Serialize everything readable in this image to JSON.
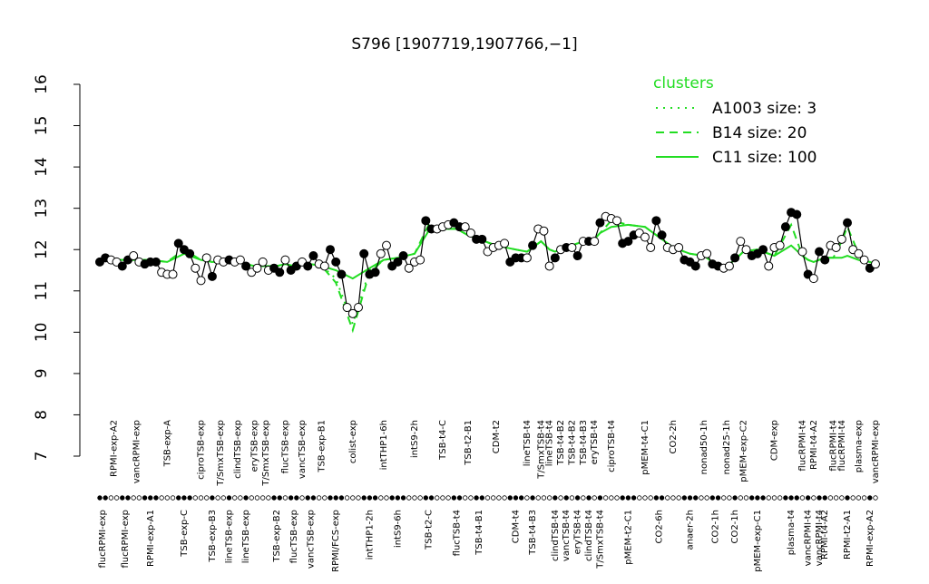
{
  "chart_data": {
    "type": "profile",
    "title": "S796 [1907719,1907766,−1]",
    "ylim": [
      7,
      16
    ],
    "yticks": [
      7,
      8,
      9,
      10,
      11,
      12,
      13,
      14,
      15,
      16
    ],
    "legend_title": "clusters",
    "legend_position": "top-right",
    "groups": [
      {
        "label": "flucRPMI-exp",
        "side": "bottom",
        "filled": true,
        "values": [
          11.7,
          11.8
        ]
      },
      {
        "label": "RPMI-exp-A2",
        "side": "top",
        "filled": false,
        "values": [
          11.75,
          11.7
        ]
      },
      {
        "label": "flucRPMI-exp",
        "side": "bottom",
        "filled": true,
        "values": [
          11.6,
          11.75
        ]
      },
      {
        "label": "vancRPMI-exp",
        "side": "top",
        "filled": false,
        "values": [
          11.85,
          11.7
        ]
      },
      {
        "label": "RPMI-exp-A1",
        "side": "bottom",
        "filled": true,
        "values": [
          11.65,
          11.7,
          11.7
        ]
      },
      {
        "label": "TSB-exp-A",
        "side": "top",
        "filled": false,
        "values": [
          11.45,
          11.4,
          11.4
        ]
      },
      {
        "label": "TSB-exp-C",
        "side": "bottom",
        "filled": true,
        "values": [
          12.15,
          12.0,
          11.9
        ]
      },
      {
        "label": "ciproTSB-exp",
        "side": "top",
        "filled": false,
        "values": [
          11.55,
          11.25,
          11.8
        ]
      },
      {
        "label": "TSB-exp-B3",
        "side": "bottom",
        "filled": true,
        "values": [
          11.35
        ]
      },
      {
        "label": "T/SmxTSB-exp",
        "side": "top",
        "filled": false,
        "values": [
          11.75,
          11.7
        ]
      },
      {
        "label": "lineTSB-exp",
        "side": "bottom",
        "filled": true,
        "values": [
          11.75
        ]
      },
      {
        "label": "clindTSB-exp",
        "side": "top",
        "filled": false,
        "values": [
          11.7,
          11.75
        ]
      },
      {
        "label": "lineTSB-exp",
        "side": "bottom",
        "filled": true,
        "values": [
          11.6
        ]
      },
      {
        "label": "eryTSB-exp",
        "side": "top",
        "filled": false,
        "values": [
          11.45,
          11.55
        ]
      },
      {
        "label": "T/SmxTSB-exp",
        "side": "top",
        "filled": false,
        "values": [
          11.7,
          11.5
        ]
      },
      {
        "label": "TSB-exp-B2",
        "side": "bottom",
        "filled": true,
        "values": [
          11.55,
          11.45
        ]
      },
      {
        "label": "flucTSB-exp",
        "side": "top",
        "filled": false,
        "values": [
          11.75
        ]
      },
      {
        "label": "flucTSB-exp",
        "side": "bottom",
        "filled": true,
        "values": [
          11.5,
          11.6
        ]
      },
      {
        "label": "vancTSB-exp",
        "side": "top",
        "filled": false,
        "values": [
          11.7
        ]
      },
      {
        "label": "vancTSB-exp",
        "side": "bottom",
        "filled": true,
        "values": [
          11.6,
          11.85
        ]
      },
      {
        "label": "TSB-exp-B1",
        "side": "top",
        "filled": false,
        "values": [
          11.65,
          11.6
        ]
      },
      {
        "label": "RPMI/FCS-exp",
        "side": "bottom",
        "filled": true,
        "values": [
          12.0,
          11.7,
          11.4
        ]
      },
      {
        "label": "colist-exp",
        "side": "top",
        "filled": false,
        "values": [
          10.6,
          10.45,
          10.6
        ]
      },
      {
        "label": "intTHP1-2h",
        "side": "bottom",
        "filled": true,
        "values": [
          11.9,
          11.4,
          11.45
        ]
      },
      {
        "label": "intTHP1-6h",
        "side": "top",
        "filled": false,
        "values": [
          11.9,
          12.1
        ]
      },
      {
        "label": "intS9-6h",
        "side": "bottom",
        "filled": true,
        "values": [
          11.6,
          11.7,
          11.85
        ]
      },
      {
        "label": "intS9-2h",
        "side": "top",
        "filled": false,
        "values": [
          11.55,
          11.7,
          11.75
        ]
      },
      {
        "label": "TSB-t2-C",
        "side": "bottom",
        "filled": true,
        "values": [
          12.7,
          12.5
        ]
      },
      {
        "label": "TSB-t4-C",
        "side": "top",
        "filled": false,
        "values": [
          12.5,
          12.55,
          12.6
        ]
      },
      {
        "label": "flucTSB-t4",
        "side": "bottom",
        "filled": true,
        "values": [
          12.65,
          12.55
        ]
      },
      {
        "label": "TSB-t2-B1",
        "side": "top",
        "filled": false,
        "values": [
          12.55,
          12.4
        ]
      },
      {
        "label": "TSB-t4-B1",
        "side": "bottom",
        "filled": true,
        "values": [
          12.25,
          12.25
        ]
      },
      {
        "label": "CDM-t2",
        "side": "top",
        "filled": false,
        "values": [
          11.95,
          12.05,
          12.1,
          12.15
        ]
      },
      {
        "label": "CDM-t4",
        "side": "bottom",
        "filled": true,
        "values": [
          11.7,
          11.8,
          11.8
        ]
      },
      {
        "label": "lineTSB-t4",
        "side": "top",
        "filled": false,
        "values": [
          11.8
        ]
      },
      {
        "label": "TSB-t4-B3",
        "side": "bottom",
        "filled": true,
        "values": [
          12.1
        ]
      },
      {
        "label": "T/SmxTSB-t4",
        "side": "top",
        "filled": false,
        "values": [
          12.5,
          12.45
        ]
      },
      {
        "label": "lineTSB-t4",
        "side": "top",
        "filled": false,
        "values": [
          11.6
        ]
      },
      {
        "label": "clindTSB-t4",
        "side": "bottom",
        "filled": true,
        "values": [
          11.8
        ]
      },
      {
        "label": "TSB-t4-B2",
        "side": "top",
        "filled": false,
        "values": [
          12.0
        ]
      },
      {
        "label": "vancTSB-t4",
        "side": "bottom",
        "filled": true,
        "values": [
          12.05
        ]
      },
      {
        "label": "TSB-t4-B2",
        "side": "top",
        "filled": false,
        "values": [
          12.05
        ]
      },
      {
        "label": "eryTSB-t4",
        "side": "bottom",
        "filled": true,
        "values": [
          11.85
        ]
      },
      {
        "label": "TSB-t4-B3",
        "side": "top",
        "filled": false,
        "values": [
          12.2
        ]
      },
      {
        "label": "clindTSB-t4",
        "side": "bottom",
        "filled": true,
        "values": [
          12.2
        ]
      },
      {
        "label": "eryTSB-t4",
        "side": "top",
        "filled": false,
        "values": [
          12.2
        ]
      },
      {
        "label": "T/SmxTSB-t4",
        "side": "bottom",
        "filled": true,
        "values": [
          12.65
        ]
      },
      {
        "label": "ciproTSB-t4",
        "side": "top",
        "filled": false,
        "values": [
          12.8,
          12.75,
          12.7
        ]
      },
      {
        "label": "pMEM-t2-C1",
        "side": "bottom",
        "filled": true,
        "values": [
          12.15,
          12.2,
          12.35
        ]
      },
      {
        "label": "pMEM-t4-C1",
        "side": "top",
        "filled": false,
        "values": [
          12.4,
          12.3,
          12.05
        ]
      },
      {
        "label": "CO2-6h",
        "side": "bottom",
        "filled": true,
        "values": [
          12.7,
          12.35
        ]
      },
      {
        "label": "CO2-2h",
        "side": "top",
        "filled": false,
        "values": [
          12.05,
          12.0,
          12.05
        ]
      },
      {
        "label": "anaer-2h",
        "side": "bottom",
        "filled": true,
        "values": [
          11.75,
          11.7,
          11.6
        ]
      },
      {
        "label": "nonad50-1h",
        "side": "top",
        "filled": false,
        "values": [
          11.85,
          11.9
        ]
      },
      {
        "label": "CO2-1h",
        "side": "bottom",
        "filled": true,
        "values": [
          11.65,
          11.6
        ]
      },
      {
        "label": "nonad25-1h",
        "side": "top",
        "filled": false,
        "values": [
          11.55,
          11.6
        ]
      },
      {
        "label": "CO2-1h",
        "side": "bottom",
        "filled": true,
        "values": [
          11.8
        ]
      },
      {
        "label": "pMEM-exp-C2",
        "side": "top",
        "filled": false,
        "values": [
          12.2,
          12.0
        ]
      },
      {
        "label": "pMEM-exp-C1",
        "side": "bottom",
        "filled": true,
        "values": [
          11.85,
          11.9,
          12.0
        ]
      },
      {
        "label": "CDM-exp",
        "side": "top",
        "filled": false,
        "values": [
          11.6,
          12.05,
          12.1
        ]
      },
      {
        "label": "plasma-t4",
        "side": "bottom",
        "filled": true,
        "values": [
          12.55,
          12.9,
          12.85
        ]
      },
      {
        "label": "flucRPMI-t4",
        "side": "top",
        "filled": false,
        "values": [
          11.95
        ]
      },
      {
        "label": "vancRPMI-t4",
        "side": "bottom",
        "filled": true,
        "values": [
          11.4
        ]
      },
      {
        "label": "RPMI-t4-A2",
        "side": "top",
        "filled": false,
        "values": [
          11.3
        ]
      },
      {
        "label": "vancRPMI-t4",
        "side": "bottom",
        "filled": true,
        "values": [
          11.95
        ]
      },
      {
        "label": "RPMI-t4-A2",
        "side": "bottom",
        "filled": true,
        "values": [
          11.75
        ]
      },
      {
        "label": "flucRPMI-t4",
        "side": "top",
        "filled": false,
        "values": [
          12.1,
          12.05
        ]
      },
      {
        "label": "flucRPMI-t4",
        "side": "top",
        "filled": false,
        "values": [
          12.25
        ]
      },
      {
        "label": "RPMI-t2-A1",
        "side": "bottom",
        "filled": true,
        "values": [
          12.65
        ]
      },
      {
        "label": "plasma-exp",
        "side": "top",
        "filled": false,
        "values": [
          12.0,
          11.9,
          11.75
        ]
      },
      {
        "label": "RPMI-exp-A2",
        "side": "bottom",
        "filled": true,
        "values": [
          11.55
        ]
      },
      {
        "label": "vancRPMI-exp",
        "side": "top",
        "filled": false,
        "values": [
          11.65
        ]
      }
    ],
    "series": [
      {
        "name": "A1003 size: 3",
        "color": "#22dd22",
        "style": "dotted",
        "values": [
          null,
          null,
          null,
          null,
          null,
          null,
          null,
          null,
          null,
          null,
          null,
          null,
          null,
          null,
          null,
          null,
          null,
          null,
          null,
          null,
          11.6,
          11.3,
          10.2,
          11.5,
          11.75,
          null,
          null,
          null,
          null,
          null,
          null,
          null,
          null,
          null,
          null,
          null,
          null,
          null,
          null,
          null,
          null,
          null,
          null,
          null,
          null,
          null,
          null,
          null,
          null,
          null,
          null,
          null,
          null,
          null,
          null,
          null,
          null,
          null,
          null,
          null,
          null,
          null,
          null,
          null,
          null,
          null,
          null,
          null,
          null,
          null,
          null,
          null
        ]
      },
      {
        "name": "B14 size: 20",
        "color": "#22dd22",
        "style": "dashed",
        "values": [
          11.75,
          11.75,
          11.75,
          11.75,
          11.75,
          11.7,
          12.0,
          11.75,
          11.7,
          11.7,
          11.7,
          11.7,
          11.65,
          11.6,
          11.6,
          11.6,
          11.65,
          11.6,
          11.65,
          11.65,
          11.6,
          11.2,
          10.05,
          11.45,
          11.75,
          11.8,
          11.9,
          12.6,
          12.5,
          12.5,
          12.35,
          12.25,
          12.1,
          12.0,
          11.95,
          12.05,
          12.2,
          12.0,
          11.95,
          12.0,
          12.05,
          12.1,
          12.15,
          12.2,
          12.2,
          12.25,
          12.4,
          12.7,
          12.6,
          12.55,
          12.3,
          12.05,
          11.9,
          11.85,
          11.65,
          11.6,
          11.75,
          11.95,
          12.0,
          11.85,
          12.6,
          11.85,
          11.75,
          11.7,
          11.75,
          11.8,
          11.8,
          12.2,
          12.55,
          11.9,
          11.7,
          11.65
        ]
      },
      {
        "name": "C11 size: 100",
        "color": "#22dd22",
        "style": "solid",
        "values": [
          11.75,
          11.75,
          11.75,
          11.75,
          11.75,
          11.7,
          11.9,
          11.75,
          11.7,
          11.7,
          11.7,
          11.7,
          11.65,
          11.6,
          11.6,
          11.6,
          11.65,
          11.6,
          11.65,
          11.65,
          11.6,
          11.5,
          11.3,
          11.55,
          11.75,
          11.8,
          11.9,
          12.45,
          12.5,
          12.5,
          12.35,
          12.25,
          12.1,
          12.0,
          11.95,
          12.05,
          12.2,
          12.0,
          11.95,
          12.0,
          12.05,
          12.1,
          12.15,
          12.2,
          12.2,
          12.25,
          12.4,
          12.55,
          12.6,
          12.55,
          12.3,
          12.05,
          11.9,
          11.85,
          11.65,
          11.6,
          11.75,
          11.95,
          12.0,
          11.85,
          12.1,
          11.85,
          11.75,
          11.7,
          11.75,
          11.8,
          11.8,
          11.8,
          11.85,
          11.75,
          11.7,
          11.65
        ]
      }
    ]
  }
}
